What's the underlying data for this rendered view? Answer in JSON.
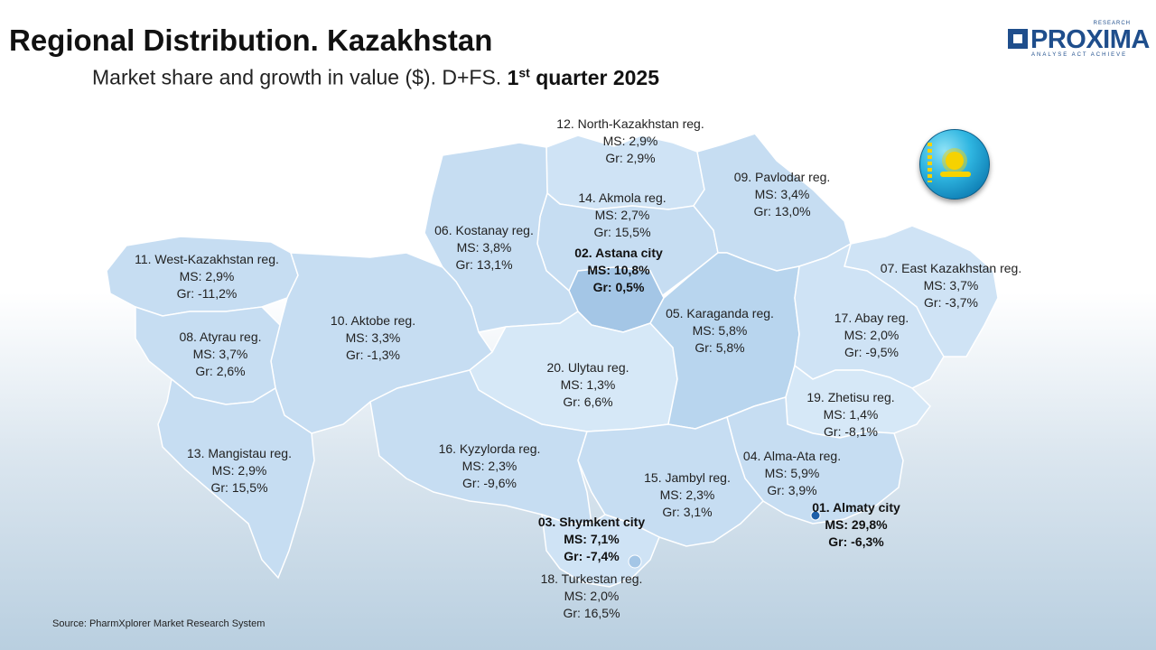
{
  "header": {
    "title": "Regional Distribution. Kazakhstan",
    "subtitle_prefix": "Market share and growth in value ($). D+FS. ",
    "subtitle_q_num": "1",
    "subtitle_q_sup": "st",
    "subtitle_q_rest": " quarter 2025"
  },
  "logo": {
    "name": "PROXIMA",
    "tag_top": "RESEARCH",
    "tag_bottom": "ANALYSE ACT ACHIEVE"
  },
  "colors": {
    "region_light": "#cfe3f5",
    "region_mid": "#b8d5ee",
    "region_dark": "#a4c6e6",
    "city_dot": "#1f5fa8",
    "brand": "#1f4e8c"
  },
  "regions": [
    {
      "id": "r12",
      "name": "12. North-Kazakhstan reg.",
      "ms": "MS: 2,9%",
      "gr": "Gr: 2,9%",
      "emphasis": false
    },
    {
      "id": "r09",
      "name": "09. Pavlodar reg.",
      "ms": "MS: 3,4%",
      "gr": "Gr: 13,0%",
      "emphasis": false
    },
    {
      "id": "r14",
      "name": "14. Akmola reg.",
      "ms": "MS: 2,7%",
      "gr": "Gr: 15,5%",
      "emphasis": false
    },
    {
      "id": "r06",
      "name": "06. Kostanay reg.",
      "ms": "MS: 3,8%",
      "gr": "Gr: 13,1%",
      "emphasis": false
    },
    {
      "id": "r02",
      "name": "02. Astana city",
      "ms": "MS: 10,8%",
      "gr": "Gr: 0,5%",
      "emphasis": true
    },
    {
      "id": "r11",
      "name": "11. West-Kazakhstan reg.",
      "ms": "MS: 2,9%",
      "gr": "Gr: -11,2%",
      "emphasis": false
    },
    {
      "id": "r07",
      "name": "07. East Kazakhstan reg.",
      "ms": "MS: 3,7%",
      "gr": "Gr: -3,7%",
      "emphasis": false
    },
    {
      "id": "r05",
      "name": "05. Karaganda reg.",
      "ms": "MS: 5,8%",
      "gr": "Gr: 5,8%",
      "emphasis": false
    },
    {
      "id": "r10",
      "name": "10. Aktobe reg.",
      "ms": "MS: 3,3%",
      "gr": "Gr: -1,3%",
      "emphasis": false
    },
    {
      "id": "r17",
      "name": "17. Abay reg.",
      "ms": "MS: 2,0%",
      "gr": "Gr: -9,5%",
      "emphasis": false
    },
    {
      "id": "r08",
      "name": "08. Atyrau reg.",
      "ms": "MS: 3,7%",
      "gr": "Gr: 2,6%",
      "emphasis": false
    },
    {
      "id": "r20",
      "name": "20. Ulytau reg.",
      "ms": "MS: 1,3%",
      "gr": "Gr: 6,6%",
      "emphasis": false
    },
    {
      "id": "r19",
      "name": "19. Zhetisu reg.",
      "ms": "MS: 1,4%",
      "gr": "Gr: -8,1%",
      "emphasis": false
    },
    {
      "id": "r13",
      "name": "13. Mangistau reg.",
      "ms": "MS: 2,9%",
      "gr": "Gr: 15,5%",
      "emphasis": false
    },
    {
      "id": "r16",
      "name": "16. Kyzylorda reg.",
      "ms": "MS: 2,3%",
      "gr": "Gr: -9,6%",
      "emphasis": false
    },
    {
      "id": "r04",
      "name": "04. Alma-Ata reg.",
      "ms": "MS: 5,9%",
      "gr": "Gr: 3,9%",
      "emphasis": false
    },
    {
      "id": "r15",
      "name": "15. Jambyl reg.",
      "ms": "MS: 2,3%",
      "gr": "Gr: 3,1%",
      "emphasis": false
    },
    {
      "id": "r01",
      "name": "01. Almaty city",
      "ms": "MS: 29,8%",
      "gr": "Gr: -6,3%",
      "emphasis": true
    },
    {
      "id": "r03",
      "name": "03. Shymkent city",
      "ms": "MS: 7,1%",
      "gr": "Gr: -7,4%",
      "emphasis": true
    },
    {
      "id": "r18",
      "name": "18. Turkestan reg.",
      "ms": "MS: 2,0%",
      "gr": "Gr: 16,5%",
      "emphasis": false
    }
  ],
  "source": "Source: PharmXplorer Market Research System"
}
